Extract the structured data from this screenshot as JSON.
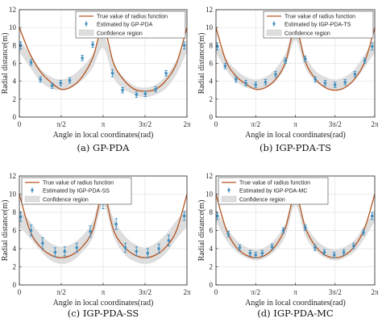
{
  "chart_data": [
    {
      "type": "line",
      "caption": "(a)  GP-PDA",
      "xlabel": "Angle in local coordinates(rad)",
      "ylabel": "Radial distance(m)",
      "xticks": [
        "0",
        "π/2",
        "π",
        "3π/2",
        "2π"
      ],
      "yticks": [
        "0",
        "2",
        "4",
        "6",
        "8",
        "10",
        "12"
      ],
      "xlim": [
        0,
        6.2832
      ],
      "ylim": [
        0,
        12
      ],
      "grid": true,
      "legend_position": "top-right",
      "legend": [
        "True value of radius function",
        "Estimated by GP-PDA",
        "Confidence region"
      ],
      "colors": {
        "true": "#b5541f",
        "estimate": "#3f8fc0",
        "band": "#dedede"
      },
      "true_curve": {
        "x": [
          0,
          0.393,
          0.785,
          1.178,
          1.571,
          1.963,
          2.356,
          2.749,
          3.1416,
          3.534,
          3.927,
          4.32,
          4.712,
          5.105,
          5.498,
          5.89,
          6.2832
        ],
        "y": [
          10.0,
          7.1,
          5.1,
          3.9,
          3.1,
          3.4,
          4.5,
          6.6,
          10.0,
          6.0,
          4.1,
          3.1,
          2.9,
          3.1,
          4.1,
          6.0,
          10.0
        ]
      },
      "band": {
        "x": [
          0,
          0.393,
          0.785,
          1.178,
          1.571,
          1.963,
          2.356,
          2.749,
          3.1416,
          3.534,
          3.927,
          4.32,
          4.712,
          5.105,
          5.498,
          5.89,
          6.2832
        ],
        "lower": [
          7.3,
          5.6,
          4.0,
          3.2,
          3.0,
          3.3,
          4.1,
          5.5,
          7.7,
          4.4,
          3.1,
          2.5,
          2.2,
          2.5,
          3.2,
          4.8,
          7.3
        ],
        "upper": [
          8.6,
          7.1,
          5.4,
          4.5,
          4.2,
          4.6,
          5.6,
          7.0,
          9.2,
          6.0,
          4.4,
          3.5,
          3.3,
          3.6,
          4.6,
          6.3,
          8.6
        ]
      },
      "estimates": {
        "x": [
          0.05,
          0.44,
          0.79,
          1.23,
          1.55,
          1.89,
          2.36,
          2.75,
          3.49,
          3.87,
          4.39,
          4.72,
          5.11,
          5.5,
          6.18
        ],
        "y": [
          8.0,
          6.1,
          4.2,
          3.5,
          3.8,
          4.1,
          6.6,
          8.1,
          4.9,
          3.0,
          2.5,
          2.6,
          3.1,
          4.9,
          8.0
        ],
        "err": [
          0.4,
          0.3,
          0.3,
          0.3,
          0.3,
          0.3,
          0.3,
          0.3,
          0.4,
          0.3,
          0.3,
          0.3,
          0.3,
          0.3,
          0.4
        ]
      }
    },
    {
      "type": "line",
      "caption": "(b)  IGP-PDA-TS",
      "xlabel": "Angle in local coordinates(rad)",
      "ylabel": "Radial distance(m)",
      "xticks": [
        "0",
        "π/2",
        "π",
        "3π/2",
        "2π"
      ],
      "yticks": [
        "0",
        "2",
        "4",
        "6",
        "8",
        "10",
        "12"
      ],
      "xlim": [
        0,
        6.2832
      ],
      "ylim": [
        0,
        12
      ],
      "grid": true,
      "legend_position": "top-right",
      "legend": [
        "True value of radius function",
        "Estimated by IGP-PDA-TS",
        "Confidence region"
      ],
      "colors": {
        "true": "#b5541f",
        "estimate": "#3f8fc0",
        "band": "#dedede"
      },
      "true_curve": {
        "x": [
          0,
          0.393,
          0.785,
          1.178,
          1.571,
          1.963,
          2.356,
          2.749,
          3.1416,
          3.534,
          3.927,
          4.32,
          4.712,
          5.105,
          5.498,
          5.89,
          6.2832
        ],
        "y": [
          10.0,
          6.3,
          4.6,
          3.7,
          3.1,
          3.3,
          4.2,
          6.1,
          10.0,
          6.2,
          4.3,
          3.3,
          3.0,
          3.3,
          4.3,
          6.2,
          10.0
        ]
      },
      "band": {
        "x": [
          0,
          0.393,
          0.785,
          1.178,
          1.571,
          1.963,
          2.356,
          2.749,
          3.1416,
          3.534,
          3.927,
          4.32,
          4.712,
          5.105,
          5.498,
          5.89,
          6.2832
        ],
        "lower": [
          7.2,
          5.3,
          4.0,
          3.3,
          3.1,
          3.3,
          4.0,
          5.6,
          8.6,
          5.5,
          4.0,
          3.3,
          3.0,
          3.3,
          4.1,
          5.6,
          7.2
        ],
        "upper": [
          8.6,
          6.6,
          5.3,
          4.5,
          4.2,
          4.5,
          5.4,
          7.1,
          10.0,
          6.9,
          5.2,
          4.5,
          4.2,
          4.5,
          5.4,
          7.0,
          8.6
        ]
      },
      "estimates": {
        "x": [
          0.05,
          0.36,
          0.79,
          1.18,
          1.57,
          1.96,
          2.36,
          2.75,
          3.14,
          3.53,
          3.93,
          4.32,
          4.71,
          5.11,
          5.5,
          5.89,
          6.18
        ],
        "y": [
          7.9,
          5.7,
          4.2,
          3.8,
          3.6,
          3.9,
          4.8,
          6.3,
          9.4,
          6.5,
          4.2,
          3.8,
          3.6,
          3.9,
          4.8,
          6.3,
          7.9
        ],
        "err": [
          0.4,
          0.3,
          0.3,
          0.3,
          0.3,
          0.3,
          0.3,
          0.3,
          0.4,
          0.3,
          0.3,
          0.3,
          0.3,
          0.3,
          0.3,
          0.3,
          0.4
        ]
      }
    },
    {
      "type": "line",
      "caption": "(c)  IGP-PDA-SS",
      "xlabel": "Angle in local coordinates(rad)",
      "ylabel": "Radial distance(m)",
      "xticks": [
        "0",
        "π/2",
        "π",
        "3π/2",
        "2π"
      ],
      "yticks": [
        "0",
        "2",
        "4",
        "6",
        "8",
        "10",
        "12"
      ],
      "xlim": [
        0,
        6.2832
      ],
      "ylim": [
        0,
        12
      ],
      "grid": true,
      "legend_position": "top-left",
      "legend": [
        "True value of radius function",
        "Estimated by IGP-PDA-SS",
        "Confidence region"
      ],
      "colors": {
        "true": "#b5541f",
        "estimate": "#3f8fc0",
        "band": "#dedede"
      },
      "true_curve": {
        "x": [
          0,
          0.393,
          0.785,
          1.178,
          1.571,
          1.963,
          2.356,
          2.749,
          3.1416,
          3.534,
          3.927,
          4.32,
          4.712,
          5.105,
          5.498,
          5.89,
          6.2832
        ],
        "y": [
          10.0,
          6.0,
          4.2,
          3.3,
          3.0,
          3.3,
          4.2,
          6.0,
          10.0,
          6.0,
          4.2,
          3.3,
          3.0,
          3.3,
          4.2,
          6.0,
          10.0
        ]
      },
      "band": {
        "x": [
          0,
          0.393,
          0.785,
          1.178,
          1.571,
          1.963,
          2.356,
          2.749,
          3.1416,
          3.534,
          3.927,
          4.32,
          4.712,
          5.105,
          5.498,
          5.89,
          6.2832
        ],
        "lower": [
          6.4,
          5.2,
          3.8,
          2.7,
          2.3,
          2.6,
          3.6,
          5.2,
          8.8,
          5.3,
          3.4,
          2.6,
          2.3,
          2.6,
          3.5,
          5.1,
          6.4
        ],
        "upper": [
          8.4,
          7.0,
          5.6,
          4.6,
          4.2,
          4.5,
          5.4,
          7.0,
          10.2,
          7.3,
          5.5,
          4.5,
          4.1,
          4.6,
          5.6,
          7.1,
          8.4
        ]
      },
      "estimates": {
        "x": [
          0.05,
          0.44,
          0.87,
          1.34,
          1.7,
          2.15,
          2.66,
          3.14,
          3.63,
          3.97,
          4.39,
          4.81,
          5.23,
          5.6,
          6.18
        ],
        "y": [
          7.5,
          6.0,
          4.6,
          3.6,
          3.7,
          4.1,
          5.9,
          9.0,
          6.7,
          4.1,
          3.7,
          3.5,
          4.0,
          4.9,
          7.6
        ],
        "err": [
          0.5,
          0.6,
          0.6,
          0.5,
          0.5,
          0.5,
          0.6,
          0.6,
          0.6,
          0.5,
          0.5,
          0.5,
          0.5,
          0.6,
          0.5
        ]
      }
    },
    {
      "type": "line",
      "caption": "(d)  IGP-PDA-MC",
      "xlabel": "Angle in local coordinates(rad)",
      "ylabel": "Radial distance(m)",
      "xticks": [
        "0",
        "π/2",
        "π",
        "3π/2",
        "2π"
      ],
      "yticks": [
        "0",
        "2",
        "4",
        "6",
        "8",
        "10",
        "12"
      ],
      "xlim": [
        0,
        6.2832
      ],
      "ylim": [
        0,
        12
      ],
      "grid": true,
      "legend_position": "top-left",
      "legend": [
        "True value of radius function",
        "Estimated by IGP-PDA-MC",
        "Confidence region"
      ],
      "colors": {
        "true": "#b5541f",
        "estimate": "#3f8fc0",
        "band": "#dedede"
      },
      "true_curve": {
        "x": [
          0,
          0.393,
          0.785,
          1.178,
          1.571,
          1.963,
          2.356,
          2.749,
          3.1416,
          3.534,
          3.927,
          4.32,
          4.712,
          5.105,
          5.498,
          5.89,
          6.2832
        ],
        "y": [
          10.0,
          6.2,
          4.2,
          3.3,
          3.0,
          3.3,
          4.3,
          6.3,
          10.0,
          6.3,
          4.3,
          3.3,
          3.0,
          3.3,
          4.3,
          6.3,
          10.0
        ]
      },
      "band": {
        "x": [
          0,
          0.393,
          0.785,
          1.178,
          1.571,
          1.963,
          2.356,
          2.749,
          3.1416,
          3.534,
          3.927,
          4.32,
          4.712,
          5.105,
          5.498,
          5.89,
          6.2832
        ],
        "lower": [
          7.0,
          5.0,
          3.7,
          3.0,
          2.7,
          3.0,
          3.8,
          5.4,
          8.8,
          5.4,
          3.8,
          3.0,
          2.7,
          3.0,
          3.7,
          5.2,
          7.0
        ],
        "upper": [
          8.3,
          6.4,
          5.0,
          4.2,
          3.9,
          4.2,
          5.1,
          6.8,
          10.0,
          6.8,
          5.1,
          4.2,
          3.9,
          4.2,
          5.0,
          6.6,
          8.3
        ]
      },
      "estimates": {
        "x": [
          0.05,
          0.49,
          0.94,
          1.35,
          1.57,
          1.83,
          2.22,
          2.66,
          3.14,
          3.53,
          3.92,
          4.29,
          4.68,
          5.06,
          5.45,
          5.84,
          6.18
        ],
        "y": [
          7.6,
          5.6,
          4.1,
          3.5,
          3.3,
          3.5,
          4.2,
          6.0,
          9.5,
          6.3,
          4.1,
          3.6,
          3.3,
          3.6,
          4.3,
          5.8,
          7.6
        ],
        "err": [
          0.4,
          0.3,
          0.3,
          0.3,
          0.3,
          0.3,
          0.3,
          0.3,
          0.4,
          0.3,
          0.3,
          0.3,
          0.3,
          0.3,
          0.3,
          0.3,
          0.4
        ]
      }
    }
  ]
}
